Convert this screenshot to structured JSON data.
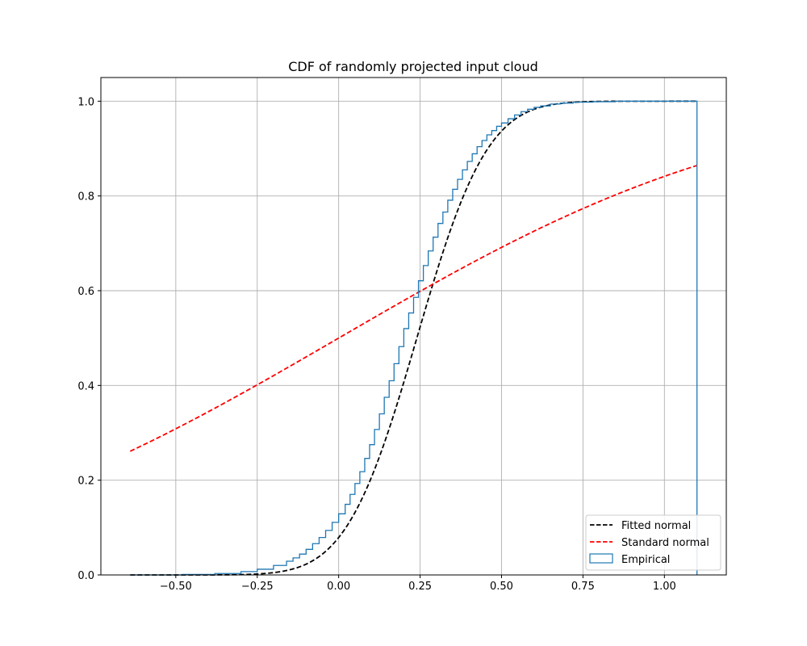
{
  "chart_data": {
    "type": "line",
    "title": "CDF of randomly projected input cloud",
    "xlabel": "",
    "ylabel": "",
    "xlim": [
      -0.73,
      1.19
    ],
    "ylim": [
      -0.0,
      1.05
    ],
    "x_ticks": [
      -0.5,
      -0.25,
      0.0,
      0.25,
      0.5,
      0.75,
      1.0
    ],
    "x_tick_labels": [
      "−0.50",
      "−0.25",
      "0.00",
      "0.25",
      "0.50",
      "0.75",
      "1.00"
    ],
    "y_ticks": [
      0.0,
      0.2,
      0.4,
      0.6,
      0.8,
      1.0
    ],
    "y_tick_labels": [
      "0.0",
      "0.2",
      "0.4",
      "0.6",
      "0.8",
      "1.0"
    ],
    "grid": true,
    "legend_position": "lower-right",
    "series": [
      {
        "name": "Fitted normal",
        "kind": "line",
        "style": "dashed",
        "color": "#000000",
        "mean": 0.24,
        "std": 0.17,
        "x_range": [
          -0.64,
          1.1
        ]
      },
      {
        "name": "Standard normal",
        "kind": "line",
        "style": "dashed",
        "color": "#ff0000",
        "mean": 0.0,
        "std": 1.0,
        "x_range": [
          -0.64,
          1.1
        ]
      },
      {
        "name": "Empirical",
        "kind": "step",
        "color": "#1f77b4",
        "x": [
          -0.64,
          -0.48,
          -0.38,
          -0.3,
          -0.25,
          -0.2,
          -0.16,
          -0.14,
          -0.12,
          -0.1,
          -0.08,
          -0.06,
          -0.04,
          -0.02,
          0.0,
          0.02,
          0.035,
          0.05,
          0.065,
          0.08,
          0.095,
          0.11,
          0.125,
          0.14,
          0.155,
          0.17,
          0.185,
          0.2,
          0.215,
          0.23,
          0.245,
          0.26,
          0.275,
          0.29,
          0.305,
          0.32,
          0.335,
          0.35,
          0.365,
          0.38,
          0.395,
          0.41,
          0.425,
          0.44,
          0.455,
          0.47,
          0.485,
          0.5,
          0.52,
          0.54,
          0.56,
          0.58,
          0.6,
          0.62,
          0.65,
          0.68,
          0.72,
          0.78,
          0.85,
          0.95,
          1.1
        ],
        "y": [
          0.0,
          0.001,
          0.003,
          0.007,
          0.012,
          0.02,
          0.029,
          0.036,
          0.044,
          0.054,
          0.066,
          0.079,
          0.094,
          0.111,
          0.129,
          0.149,
          0.17,
          0.193,
          0.218,
          0.246,
          0.275,
          0.307,
          0.34,
          0.375,
          0.41,
          0.446,
          0.482,
          0.52,
          0.553,
          0.586,
          0.621,
          0.653,
          0.684,
          0.713,
          0.742,
          0.766,
          0.791,
          0.814,
          0.835,
          0.855,
          0.873,
          0.889,
          0.904,
          0.917,
          0.929,
          0.938,
          0.947,
          0.954,
          0.963,
          0.971,
          0.978,
          0.983,
          0.987,
          0.99,
          0.994,
          0.996,
          0.998,
          0.999,
          1.0,
          1.0,
          1.0
        ]
      }
    ]
  }
}
